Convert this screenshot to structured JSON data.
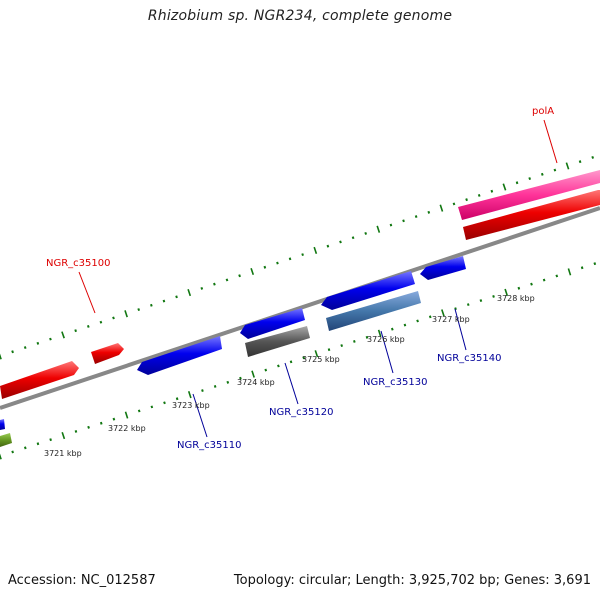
{
  "title": "Rhizobium sp. NGR234, complete genome",
  "footer": {
    "accession": "Accession: NC_012587",
    "summary": "Topology: circular; Length: 3,925,702 bp; Genes: 3,691"
  },
  "colors": {
    "forward_gene": "#ee0000",
    "reverse_gene": "#0000ee",
    "rna_gene": "#ff3399",
    "pseudogene": "#555555",
    "cds_reverse": "#4477aa",
    "other_feature": "#669922",
    "ticks": "#117711",
    "backbone": "#888888"
  },
  "kbp_labels": [
    "3721 kbp",
    "3722 kbp",
    "3723 kbp",
    "3724 kbp",
    "3725 kbp",
    "3726 kbp",
    "3727 kbp",
    "3728 kbp"
  ],
  "gene_labels": {
    "polA": "polA",
    "ngr_c35100": "NGR_c35100",
    "ngr_c35110": "NGR_c35110",
    "ngr_c35120": "NGR_c35120",
    "ngr_c35130": "NGR_c35130",
    "ngr_c35140": "NGR_c35140"
  }
}
